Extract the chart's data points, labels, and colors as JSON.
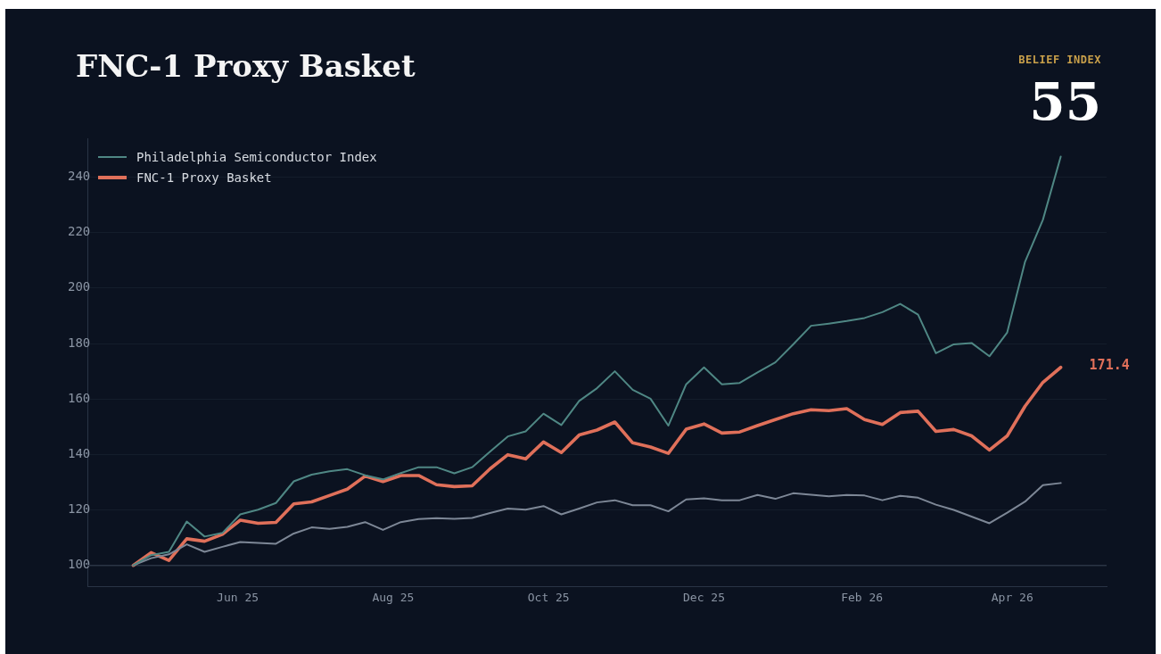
{
  "chart_data": {
    "type": "line",
    "title": "FNC-1 Proxy Basket",
    "x": [
      "2025-04-21",
      "2025-04-28",
      "2025-05-05",
      "2025-05-12",
      "2025-05-19",
      "2025-05-26",
      "2025-06-02",
      "2025-06-09",
      "2025-06-16",
      "2025-06-23",
      "2025-06-30",
      "2025-07-07",
      "2025-07-14",
      "2025-07-21",
      "2025-07-28",
      "2025-08-04",
      "2025-08-11",
      "2025-08-18",
      "2025-08-25",
      "2025-09-01",
      "2025-09-08",
      "2025-09-15",
      "2025-09-22",
      "2025-09-29",
      "2025-10-06",
      "2025-10-13",
      "2025-10-20",
      "2025-10-27",
      "2025-11-03",
      "2025-11-10",
      "2025-11-17",
      "2025-11-24",
      "2025-12-01",
      "2025-12-08",
      "2025-12-15",
      "2025-12-22",
      "2025-12-29",
      "2026-01-05",
      "2026-01-12",
      "2026-01-19",
      "2026-01-26",
      "2026-02-02",
      "2026-02-09",
      "2026-02-16",
      "2026-02-23",
      "2026-03-02",
      "2026-03-09",
      "2026-03-16",
      "2026-03-23",
      "2026-03-30",
      "2026-04-06",
      "2026-04-13",
      "2026-04-20"
    ],
    "series": [
      {
        "name": "Philadelphia Semiconductor Index",
        "color": "#4f8784",
        "values": [
          100,
          103.7,
          104.9,
          115.8,
          110.4,
          111.7,
          118.4,
          120.1,
          122.5,
          130.3,
          132.7,
          133.9,
          134.7,
          132.5,
          131,
          133.3,
          135.4,
          135.4,
          133.2,
          135.4,
          141,
          146.5,
          148.3,
          154.7,
          150.6,
          159.3,
          163.9,
          170,
          163.3,
          160.1,
          150.4,
          165.3,
          171.4,
          165.3,
          165.8,
          169.6,
          173.2,
          179.7,
          186.4,
          187.2,
          188.1,
          189.2,
          191.3,
          194.3,
          190.4,
          176.5,
          179.7,
          180.2,
          175.4,
          184,
          209.5,
          224.6,
          247.4
        ]
      },
      {
        "color": "#7d8796",
        "values": [
          100,
          102.6,
          104,
          107.6,
          104.9,
          106.7,
          108.4,
          108.1,
          107.8,
          111.5,
          113.7,
          113.2,
          113.9,
          115.6,
          112.8,
          115.6,
          116.7,
          117,
          116.8,
          117.1,
          118.9,
          120.5,
          120.1,
          121.4,
          118.4,
          120.5,
          122.7,
          123.5,
          121.7,
          121.7,
          119.5,
          123.8,
          124.2,
          123.5,
          123.5,
          125.4,
          124,
          126,
          125.5,
          124.9,
          125.4,
          125.2,
          123.5,
          125.1,
          124.4,
          121.9,
          120,
          117.6,
          115.2,
          119,
          123,
          128.9,
          129.7
        ]
      },
      {
        "name": "FNC-1 Proxy Basket",
        "color": "#e0705a",
        "values": [
          100,
          104.6,
          101.8,
          109.6,
          108.7,
          111.2,
          116.3,
          115.2,
          115.5,
          122.2,
          122.9,
          125.2,
          127.5,
          132.2,
          130.2,
          132.4,
          132.4,
          129.1,
          128.4,
          128.7,
          134.8,
          139.9,
          138.4,
          144.5,
          140.7,
          147,
          148.8,
          151.7,
          144.2,
          142.7,
          140.4,
          149.1,
          151,
          147.7,
          148.1,
          150.4,
          152.6,
          154.7,
          156.1,
          155.8,
          156.5,
          152.6,
          150.8,
          155.1,
          155.6,
          148.3,
          149,
          146.7,
          141.6,
          146.7,
          157.4,
          166,
          171.4
        ]
      }
    ],
    "xlim": [
      "2025-04-03",
      "2026-05-08"
    ],
    "xticks": [
      {
        "value": "2025-06-01",
        "label": "Jun 25"
      },
      {
        "value": "2025-08-01",
        "label": "Aug 25"
      },
      {
        "value": "2025-10-01",
        "label": "Oct 25"
      },
      {
        "value": "2025-12-01",
        "label": "Dec 25"
      },
      {
        "value": "2026-02-01",
        "label": "Feb 26"
      },
      {
        "value": "2026-04-01",
        "label": "Apr 26"
      }
    ],
    "ylim": [
      92.5,
      254
    ],
    "yticks": [
      100,
      120,
      140,
      160,
      180,
      200,
      220,
      240
    ],
    "grid": "y",
    "ref_lines": [
      {
        "axis": "y",
        "value": 100,
        "color": "#2a3445"
      }
    ],
    "legend": "top left",
    "annotations": [
      {
        "text": "171.4",
        "x": "2026-04-20",
        "y": 171.4
      },
      "BELIEF INDEX",
      "55"
    ]
  }
}
